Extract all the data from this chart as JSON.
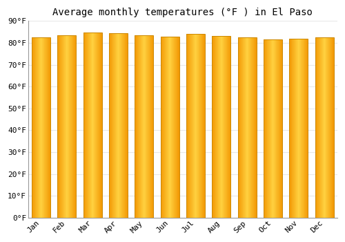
{
  "title": "Average monthly temperatures (°F ) in El Paso",
  "months": [
    "Jan",
    "Feb",
    "Mar",
    "Apr",
    "May",
    "Jun",
    "Jul",
    "Aug",
    "Sep",
    "Oct",
    "Nov",
    "Dec"
  ],
  "values": [
    82.5,
    83.5,
    84.8,
    84.5,
    83.5,
    82.8,
    84.0,
    83.3,
    82.5,
    81.5,
    82.0,
    82.5
  ],
  "background_color": "#FFFFFF",
  "plot_bg_color": "#FFFFFF",
  "grid_color": "#E8E8E8",
  "bar_color_center": "#FFD040",
  "bar_color_edge": "#F59A00",
  "bar_outline_color": "#CC8800",
  "ylim": [
    0,
    90
  ],
  "ytick_step": 10,
  "title_fontsize": 10,
  "tick_fontsize": 8,
  "bar_width": 0.72
}
